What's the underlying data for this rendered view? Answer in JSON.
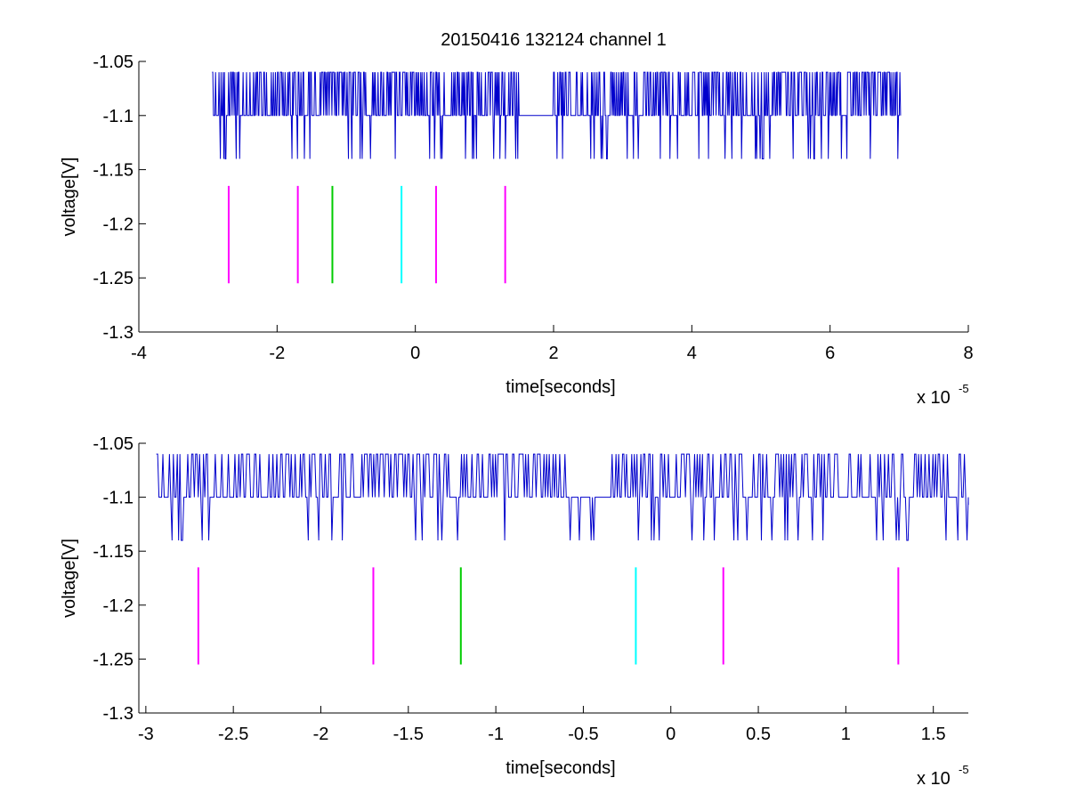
{
  "chart_data": [
    {
      "type": "line",
      "title": "20150416 132124 channel 1",
      "xlabel": "time[seconds]",
      "ylabel": "voltage[V]",
      "x_exponent_base": "x 10",
      "x_exponent_power": "-5",
      "xlim": [
        -4,
        8
      ],
      "ylim": [
        -1.3,
        -1.05
      ],
      "xticks": [
        -4,
        -2,
        0,
        2,
        4,
        6,
        8
      ],
      "xtick_labels": [
        "-4",
        "-2",
        "0",
        "2",
        "4",
        "6",
        "8"
      ],
      "yticks": [
        -1.3,
        -1.25,
        -1.2,
        -1.15,
        -1.1,
        -1.05
      ],
      "ytick_labels": [
        "-1.3",
        "-1.25",
        "-1.2",
        "-1.15",
        "-1.1",
        "-1.05"
      ],
      "grid": false,
      "signal": {
        "color": "#0000cc",
        "x_range": [
          -2.94,
          7.02
        ],
        "baseline": -1.1,
        "levels": [
          -1.06,
          -1.1,
          -1.14
        ],
        "pattern": "quantized noise toggling between -1.1 and -1.06 with occasional dips to -1.14"
      },
      "markers": [
        {
          "x": -2.7,
          "y_range": [
            -1.255,
            -1.165
          ],
          "color": "#ff00ff"
        },
        {
          "x": -1.7,
          "y_range": [
            -1.255,
            -1.165
          ],
          "color": "#ff00ff"
        },
        {
          "x": -1.2,
          "y_range": [
            -1.255,
            -1.165
          ],
          "color": "#00cc00"
        },
        {
          "x": -0.2,
          "y_range": [
            -1.255,
            -1.165
          ],
          "color": "#00ffff"
        },
        {
          "x": 0.3,
          "y_range": [
            -1.255,
            -1.165
          ],
          "color": "#ff00ff"
        },
        {
          "x": 1.3,
          "y_range": [
            -1.255,
            -1.165
          ],
          "color": "#ff00ff"
        }
      ]
    },
    {
      "type": "line",
      "title": "",
      "xlabel": "time[seconds]",
      "ylabel": "voltage[V]",
      "x_exponent_base": "x 10",
      "x_exponent_power": "-5",
      "xlim": [
        -3.04,
        1.7
      ],
      "ylim": [
        -1.3,
        -1.05
      ],
      "xticks": [
        -3,
        -2.5,
        -2,
        -1.5,
        -1,
        -0.5,
        0,
        0.5,
        1,
        1.5
      ],
      "xtick_labels": [
        "-3",
        "-2.5",
        "-2",
        "-1.5",
        "-1",
        "-0.5",
        "0",
        "0.5",
        "1",
        "1.5"
      ],
      "yticks": [
        -1.3,
        -1.25,
        -1.2,
        -1.15,
        -1.1,
        -1.05
      ],
      "ytick_labels": [
        "-1.3",
        "-1.25",
        "-1.2",
        "-1.15",
        "-1.1",
        "-1.05"
      ],
      "grid": false,
      "signal": {
        "color": "#0000cc",
        "x_range": [
          -2.94,
          1.7
        ],
        "baseline": -1.1,
        "levels": [
          -1.06,
          -1.1,
          -1.14
        ],
        "pattern": "quantized noise toggling between -1.1 and -1.06 with occasional dips to -1.14"
      },
      "markers": [
        {
          "x": -2.7,
          "y_range": [
            -1.255,
            -1.165
          ],
          "color": "#ff00ff"
        },
        {
          "x": -1.7,
          "y_range": [
            -1.255,
            -1.165
          ],
          "color": "#ff00ff"
        },
        {
          "x": -1.2,
          "y_range": [
            -1.255,
            -1.165
          ],
          "color": "#00cc00"
        },
        {
          "x": -0.2,
          "y_range": [
            -1.255,
            -1.165
          ],
          "color": "#00ffff"
        },
        {
          "x": 0.3,
          "y_range": [
            -1.255,
            -1.165
          ],
          "color": "#ff00ff"
        },
        {
          "x": 1.3,
          "y_range": [
            -1.255,
            -1.165
          ],
          "color": "#ff00ff"
        }
      ]
    }
  ]
}
